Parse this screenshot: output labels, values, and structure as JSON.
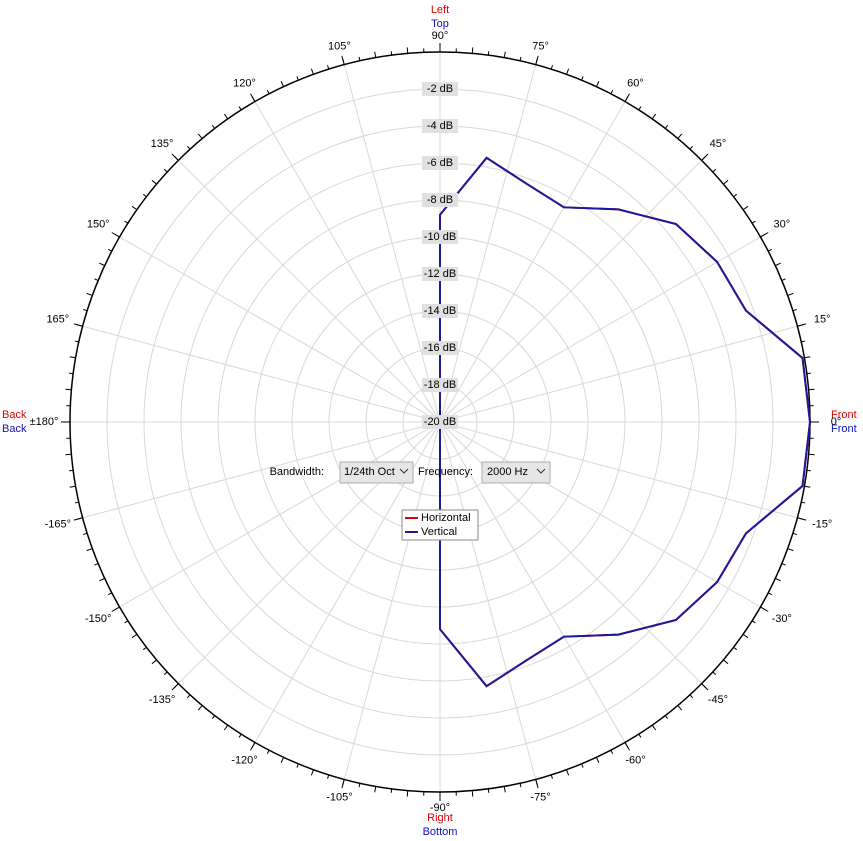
{
  "chart_data": {
    "type": "polar",
    "x": [
      -180,
      -170,
      -160,
      -150,
      -140,
      -130,
      -120,
      -110,
      -100,
      -90,
      -80,
      -70,
      -60,
      -50,
      -40,
      -30,
      -20,
      -10,
      0,
      10,
      20,
      30,
      40,
      50,
      60,
      70,
      80,
      90,
      100,
      110,
      120,
      130,
      140,
      150,
      160,
      170,
      180
    ],
    "series": [
      {
        "name": "Horizontal",
        "color": "#e00000",
        "values": [
          -20,
          -20,
          -20,
          -20,
          -20,
          -20,
          -20,
          -20,
          -20,
          -8.8,
          -5.5,
          -6.3,
          -6.6,
          -5.0,
          -3.35,
          -2.7,
          -2.4,
          -0.1,
          0,
          -0.1,
          -2.4,
          -2.7,
          -3.35,
          -5.0,
          -6.6,
          -6.3,
          -5.5,
          -8.8,
          -20,
          -20,
          -20,
          -20,
          -20,
          -20,
          -20,
          -20,
          -20
        ]
      },
      {
        "name": "Vertical",
        "color": "#1a1aa0",
        "values": [
          -20,
          -20,
          -20,
          -20,
          -20,
          -20,
          -20,
          -20,
          -20,
          -8.8,
          -5.5,
          -6.3,
          -6.6,
          -5.0,
          -3.35,
          -2.7,
          -2.4,
          -0.1,
          0,
          -0.1,
          -2.4,
          -2.7,
          -3.35,
          -5.0,
          -6.6,
          -6.3,
          -5.5,
          -8.8,
          -20,
          -20,
          -20,
          -20,
          -20,
          -20,
          -20,
          -20,
          -20
        ]
      }
    ],
    "rlim": [
      -20,
      0
    ],
    "rticks": [
      {
        "value": -2,
        "label": "-2 dB"
      },
      {
        "value": -4,
        "label": "-4 dB"
      },
      {
        "value": -6,
        "label": "-6 dB"
      },
      {
        "value": -8,
        "label": "-8 dB"
      },
      {
        "value": -10,
        "label": "-10 dB"
      },
      {
        "value": -12,
        "label": "-12 dB"
      },
      {
        "value": -14,
        "label": "-14 dB"
      },
      {
        "value": -16,
        "label": "-16 dB"
      },
      {
        "value": -18,
        "label": "-18 dB"
      },
      {
        "value": -20,
        "label": "-20 dB"
      }
    ],
    "xticks": [
      {
        "value": 0,
        "label": "0°"
      },
      {
        "value": 15,
        "label": "15°"
      },
      {
        "value": 30,
        "label": "30°"
      },
      {
        "value": 45,
        "label": "45°"
      },
      {
        "value": 60,
        "label": "60°"
      },
      {
        "value": 75,
        "label": "75°"
      },
      {
        "value": 90,
        "label": "90°"
      },
      {
        "value": 105,
        "label": "105°"
      },
      {
        "value": 120,
        "label": "120°"
      },
      {
        "value": 135,
        "label": "135°"
      },
      {
        "value": 150,
        "label": "150°"
      },
      {
        "value": 165,
        "label": "165°"
      },
      {
        "value": 180,
        "label": "±180°"
      },
      {
        "value": -165,
        "label": "-165°"
      },
      {
        "value": -150,
        "label": "-150°"
      },
      {
        "value": -135,
        "label": "-135°"
      },
      {
        "value": -120,
        "label": "-120°"
      },
      {
        "value": -105,
        "label": "-105°"
      },
      {
        "value": -90,
        "label": "-90°"
      },
      {
        "value": -75,
        "label": "-75°"
      },
      {
        "value": -60,
        "label": "-60°"
      },
      {
        "value": -45,
        "label": "-45°"
      },
      {
        "value": -30,
        "label": "-30°"
      },
      {
        "value": -15,
        "label": "-15°"
      }
    ],
    "directions": {
      "top": [
        "Left",
        "Top"
      ],
      "right": [
        "Front",
        "Front"
      ],
      "bottom": [
        "Right",
        "Bottom"
      ],
      "left": [
        "Back",
        "Back"
      ]
    },
    "controls": {
      "bandwidth_label": "Bandwidth:",
      "bandwidth": "1/24th Oct",
      "frequency_label": "Frequency:",
      "frequency": "2000 Hz"
    }
  }
}
